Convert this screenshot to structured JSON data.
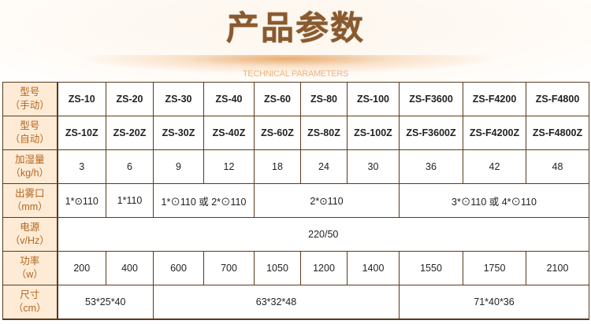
{
  "header": {
    "title": "产品参数",
    "subtitle": "TECHNICAL PARAMETERS"
  },
  "colors": {
    "title": "#8a5a2c",
    "label_bg": "#fdebd6",
    "label_text": "#b5651d",
    "border": "#5a3a1a",
    "subtitle": "#f0b27a"
  },
  "rows": [
    {
      "label": [
        "型号",
        "（手动）"
      ],
      "cells": [
        {
          "v": "ZS-10",
          "span": 1
        },
        {
          "v": "ZS-20",
          "span": 1
        },
        {
          "v": "ZS-30",
          "span": 1
        },
        {
          "v": "ZS-40",
          "span": 1
        },
        {
          "v": "ZS-60",
          "span": 1
        },
        {
          "v": "ZS-80",
          "span": 1
        },
        {
          "v": "ZS-100",
          "span": 1
        },
        {
          "v": "ZS-F3600",
          "span": 1
        },
        {
          "v": "ZS-F4200",
          "span": 1
        },
        {
          "v": "ZS-F4800",
          "span": 1
        }
      ]
    },
    {
      "label": [
        "型号",
        "（自动）"
      ],
      "cells": [
        {
          "v": "ZS-10Z",
          "span": 1
        },
        {
          "v": "ZS-20Z",
          "span": 1
        },
        {
          "v": "ZS-30Z",
          "span": 1
        },
        {
          "v": "ZS-40Z",
          "span": 1
        },
        {
          "v": "ZS-60Z",
          "span": 1
        },
        {
          "v": "ZS-80Z",
          "span": 1
        },
        {
          "v": "ZS-100Z",
          "span": 1
        },
        {
          "v": "ZS-F3600Z",
          "span": 1
        },
        {
          "v": "ZS-F4200Z",
          "span": 1
        },
        {
          "v": "ZS-F4800Z",
          "span": 1
        }
      ]
    },
    {
      "label": [
        "加湿量",
        "（kg/h）"
      ],
      "cells": [
        {
          "v": "3",
          "span": 1
        },
        {
          "v": "6",
          "span": 1
        },
        {
          "v": "9",
          "span": 1
        },
        {
          "v": "12",
          "span": 1
        },
        {
          "v": "18",
          "span": 1
        },
        {
          "v": "24",
          "span": 1
        },
        {
          "v": "30",
          "span": 1
        },
        {
          "v": "36",
          "span": 1
        },
        {
          "v": "42",
          "span": 1
        },
        {
          "v": "48",
          "span": 1
        }
      ]
    },
    {
      "label": [
        "出雾口",
        "（mm）"
      ],
      "cells": [
        {
          "v": "1*⊙110",
          "span": 1
        },
        {
          "v": "1*110",
          "span": 1
        },
        {
          "v": "1*⊙110 或 2*⊙110",
          "span": 2
        },
        {
          "v": "2*⊙110",
          "span": 3
        },
        {
          "v": "3*⊙110 或 4*⊙110",
          "span": 3
        }
      ]
    },
    {
      "label": [
        "电源",
        "（v/Hz）"
      ],
      "cells": [
        {
          "v": "220/50",
          "span": 10
        }
      ]
    },
    {
      "label": [
        "功率",
        "（w）"
      ],
      "cells": [
        {
          "v": "200",
          "span": 1
        },
        {
          "v": "400",
          "span": 1
        },
        {
          "v": "600",
          "span": 1
        },
        {
          "v": "700",
          "span": 1
        },
        {
          "v": "1050",
          "span": 1
        },
        {
          "v": "1200",
          "span": 1
        },
        {
          "v": "1400",
          "span": 1
        },
        {
          "v": "1550",
          "span": 1
        },
        {
          "v": "1750",
          "span": 1
        },
        {
          "v": "2100",
          "span": 1
        }
      ]
    },
    {
      "label": [
        "尺寸",
        "（cm）"
      ],
      "cells": [
        {
          "v": "53*25*40",
          "span": 2
        },
        {
          "v": "63*32*48",
          "span": 5
        },
        {
          "v": "71*40*36",
          "span": 3
        }
      ]
    }
  ]
}
